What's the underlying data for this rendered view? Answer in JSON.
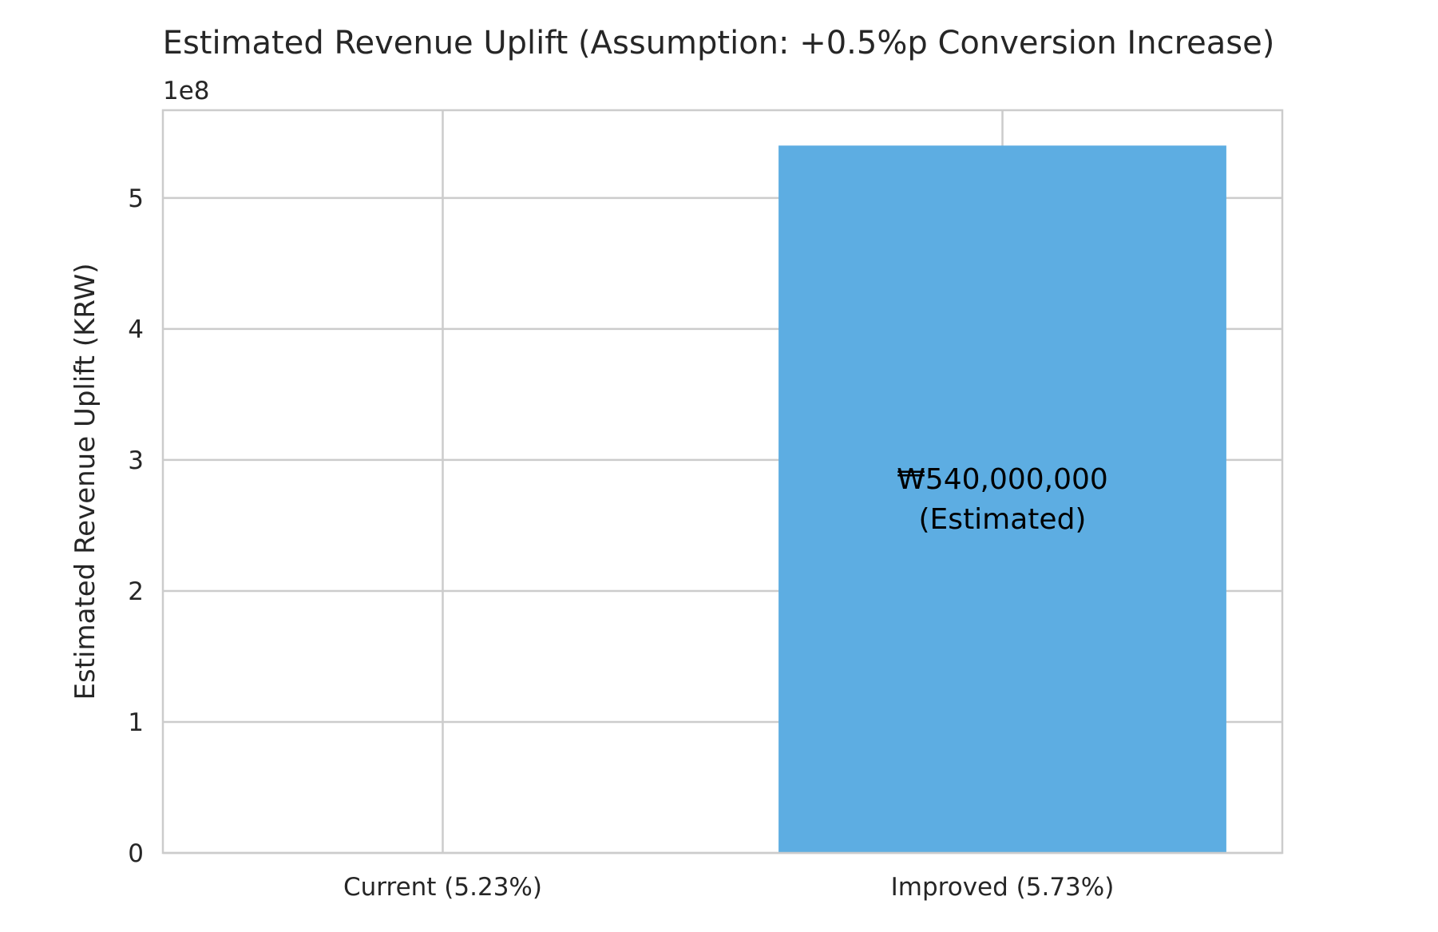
{
  "chart_data": {
    "type": "bar",
    "title": "Estimated Revenue Uplift (Assumption: +0.5%p Conversion Increase)",
    "xlabel": "",
    "ylabel": "Estimated Revenue Uplift (KRW)",
    "y_offset_label": "1e8",
    "categories": [
      "Current (5.23%)",
      "Improved (5.73%)"
    ],
    "values": [
      0,
      540000000
    ],
    "data_labels": [
      "",
      "₩540,000,000\n(Estimated)"
    ],
    "ylim": [
      0,
      567000000
    ],
    "yticks": [
      0,
      100000000,
      200000000,
      300000000,
      400000000,
      500000000
    ],
    "ytick_labels": [
      "0",
      "1",
      "2",
      "3",
      "4",
      "5"
    ],
    "grid": true,
    "bar_color": "#5dade2",
    "grid_color": "#cccccc"
  }
}
